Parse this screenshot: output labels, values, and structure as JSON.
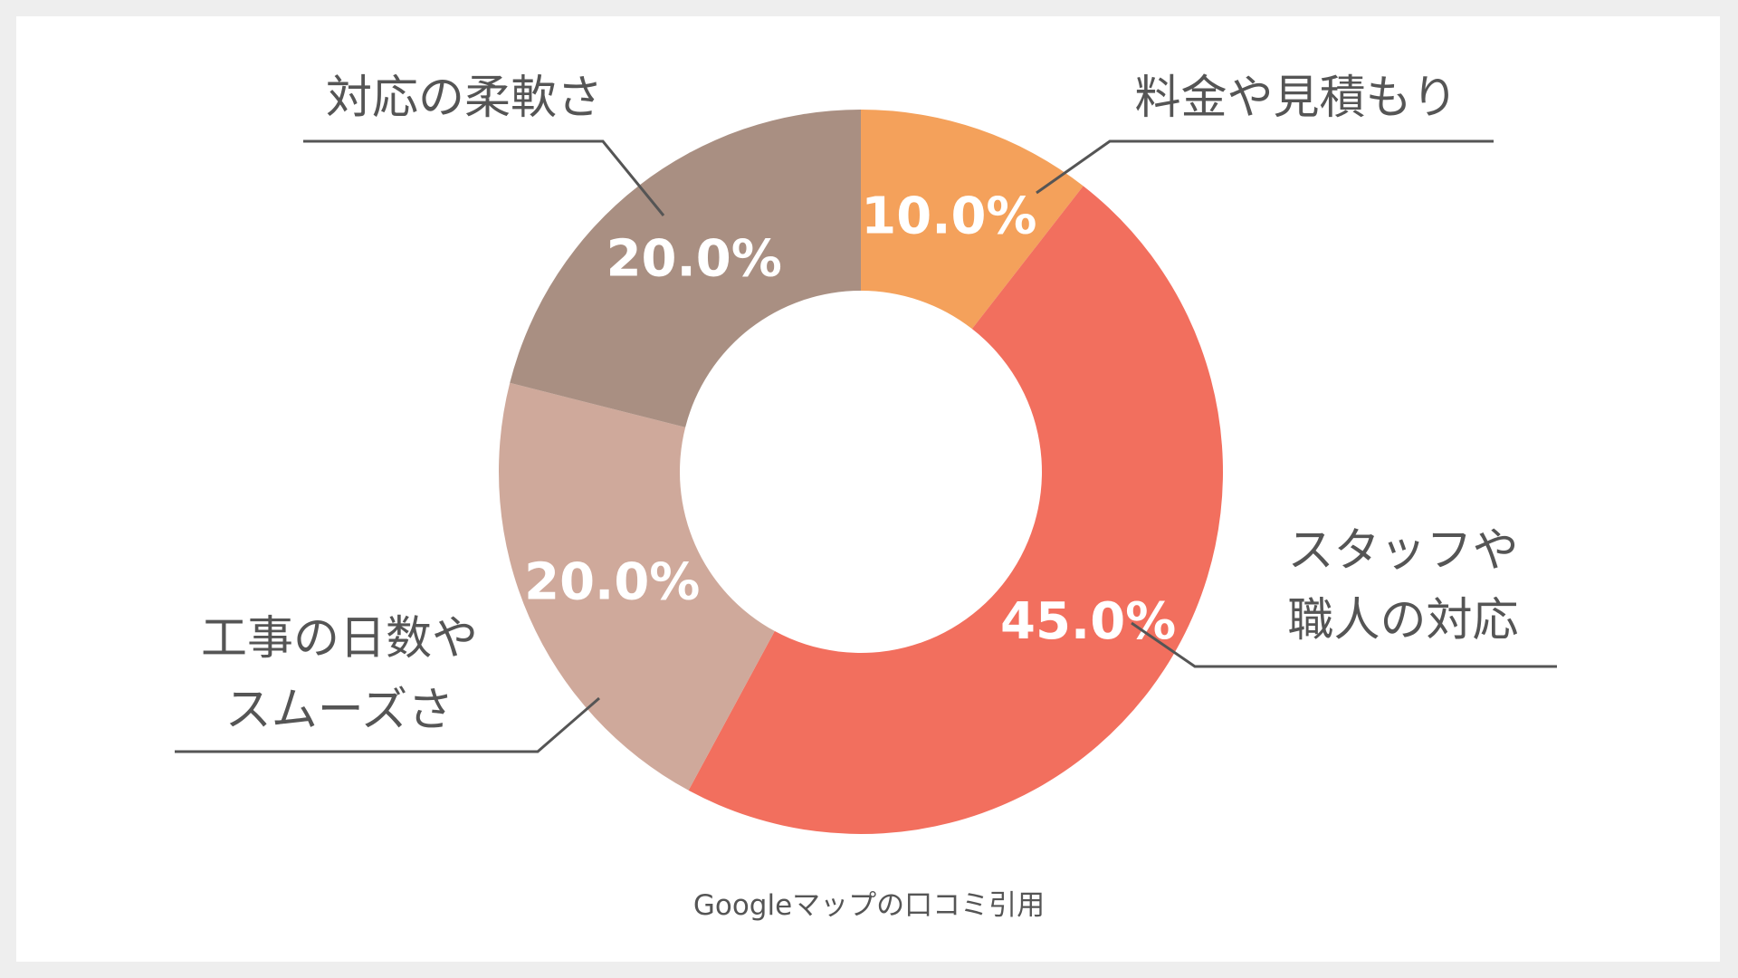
{
  "chart_data": {
    "type": "pie",
    "categories": [
      "料金や見積もり",
      "スタッフや職人の対応",
      "工事の日数やスムーズさ",
      "対応の柔軟さ"
    ],
    "category_lines": [
      [
        "料金や見積もり"
      ],
      [
        "スタッフや",
        "職人の対応"
      ],
      [
        "工事の日数や",
        "スムーズさ"
      ],
      [
        "対応の柔軟さ"
      ]
    ],
    "values": [
      10.0,
      45.0,
      20.0,
      20.0
    ],
    "value_labels": [
      "10.0%",
      "45.0%",
      "20.0%",
      "20.0%"
    ],
    "colors": [
      "#F4A15B",
      "#F26F5E",
      "#CFA99B",
      "#A98F82"
    ],
    "donut": true,
    "start_angle": "top, clockwise",
    "source_note": "Googleマップの口コミ引用"
  },
  "colors": {
    "background": "#eeeeee",
    "panel": "#ffffff",
    "text": "#555555"
  }
}
